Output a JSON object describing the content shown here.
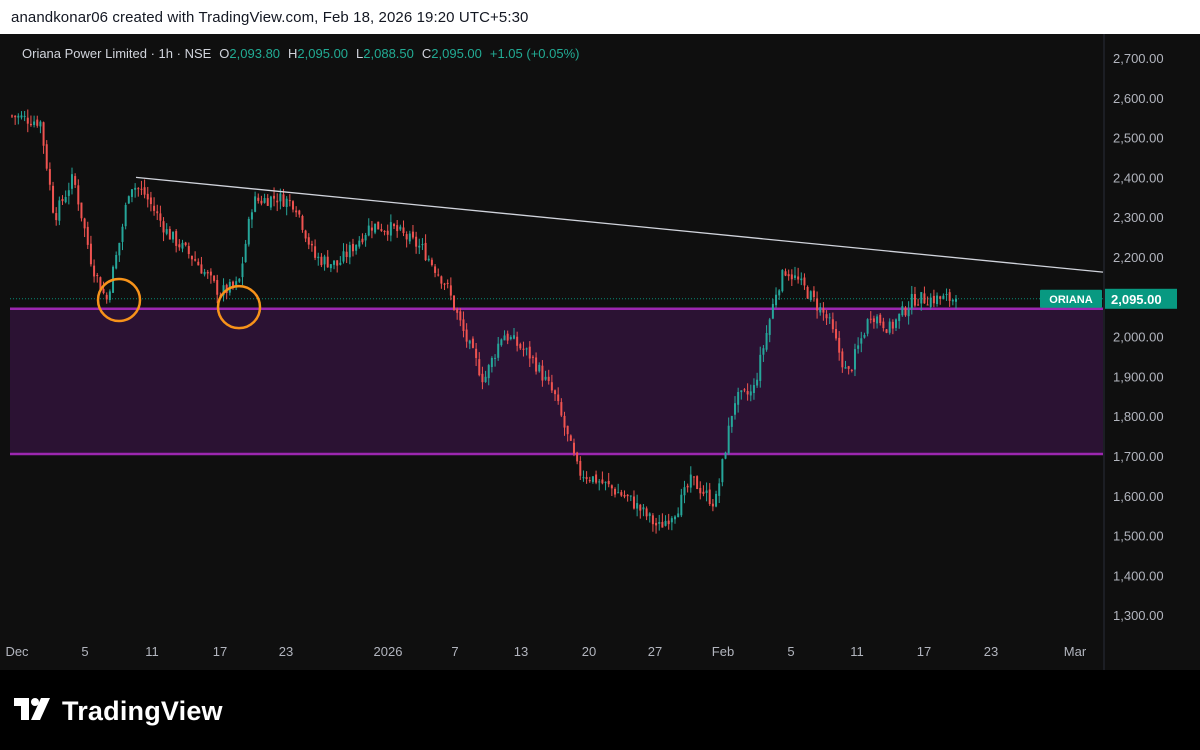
{
  "header": {
    "attribution": "anandkonar06 created with TradingView.com, Feb 18, 2026 19:20 UTC+5:30"
  },
  "legend": {
    "symbol": "Oriana Power Limited · 1h · NSE",
    "open_label": "O",
    "open_value": "2,093.80",
    "high_label": "H",
    "high_value": "2,095.00",
    "low_label": "L",
    "low_value": "2,088.50",
    "close_label": "C",
    "close_value": "2,095.00",
    "change": "+1.05 (+0.05%)"
  },
  "price_tag": {
    "ticker": "ORIANA",
    "price": "2,095.00",
    "value": 2095
  },
  "footer": {
    "brand": "TradingView"
  },
  "colors": {
    "up": "#26a69a",
    "down": "#ef5350",
    "zone_fill": "#2b1233",
    "zone_line": "#9c27b0",
    "trendline": "#d1d4dc",
    "highlight_circle": "#f7931a",
    "price_tag_bg": "#089981",
    "axis_text": "#b2b5be",
    "legend_value": "#22ab94"
  },
  "chart_data": {
    "type": "candlestick",
    "title": "Oriana Power Limited · 1h · NSE",
    "y_axis": {
      "min": 1240,
      "max": 2760,
      "ticks": [
        2700,
        2600,
        2500,
        2400,
        2300,
        2200,
        2100,
        2000,
        1900,
        1800,
        1700,
        1600,
        1500,
        1400,
        1300
      ],
      "tick_labels": [
        "2,700.00",
        "2,600.00",
        "2,500.00",
        "2,400.00",
        "2,300.00",
        "2,200.00",
        "2,100.00",
        "2,000.00",
        "1,900.00",
        "1,800.00",
        "1,700.00",
        "1,600.00",
        "1,500.00",
        "1,400.00",
        "1,300.00"
      ]
    },
    "x_axis": {
      "labels": [
        "Dec",
        "5",
        "11",
        "17",
        "23",
        "2026",
        "7",
        "13",
        "20",
        "27",
        "Feb",
        "5",
        "11",
        "17",
        "23",
        "Mar"
      ]
    },
    "last_price": 2095,
    "support_zone": {
      "upper": 2070,
      "lower": 1705
    },
    "trendline": [
      {
        "date": "Dec 10",
        "price": 2400
      },
      {
        "date": "Feb 25",
        "price": 2162
      }
    ],
    "highlighted_lows": [
      {
        "date": "Dec 8",
        "price": 2092
      },
      {
        "date": "Dec 19",
        "price": 2074
      }
    ],
    "close_path": [
      [
        0,
        2555
      ],
      [
        0.03,
        2540
      ],
      [
        0.045,
        2300
      ],
      [
        0.065,
        2400
      ],
      [
        0.085,
        2180
      ],
      [
        0.1,
        2090
      ],
      [
        0.115,
        2250
      ],
      [
        0.125,
        2385
      ],
      [
        0.14,
        2360
      ],
      [
        0.165,
        2260
      ],
      [
        0.195,
        2190
      ],
      [
        0.22,
        2110
      ],
      [
        0.24,
        2130
      ],
      [
        0.255,
        2340
      ],
      [
        0.28,
        2350
      ],
      [
        0.3,
        2335
      ],
      [
        0.32,
        2200
      ],
      [
        0.345,
        2180
      ],
      [
        0.38,
        2280
      ],
      [
        0.405,
        2270
      ],
      [
        0.435,
        2220
      ],
      [
        0.46,
        2130
      ],
      [
        0.48,
        2000
      ],
      [
        0.5,
        1890
      ],
      [
        0.52,
        2010
      ],
      [
        0.55,
        1950
      ],
      [
        0.575,
        1850
      ],
      [
        0.6,
        1660
      ],
      [
        0.62,
        1640
      ],
      [
        0.655,
        1590
      ],
      [
        0.685,
        1520
      ],
      [
        0.705,
        1570
      ],
      [
        0.72,
        1640
      ],
      [
        0.745,
        1580
      ],
      [
        0.765,
        1840
      ],
      [
        0.785,
        1860
      ],
      [
        0.81,
        2120
      ],
      [
        0.82,
        2170
      ],
      [
        0.84,
        2120
      ],
      [
        0.865,
        2040
      ],
      [
        0.885,
        1900
      ],
      [
        0.91,
        2060
      ],
      [
        0.93,
        2020
      ],
      [
        0.955,
        2095
      ]
    ]
  }
}
